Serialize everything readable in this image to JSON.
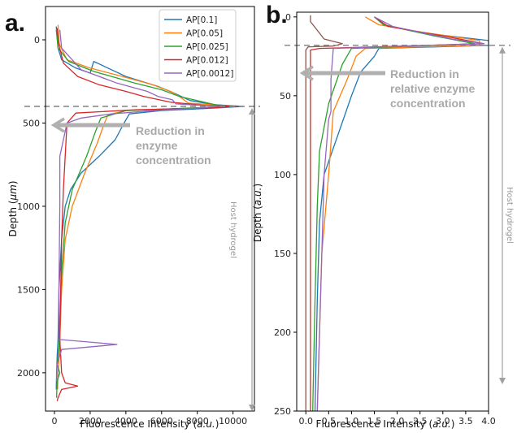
{
  "chart_data": [
    {
      "panel": "a.",
      "type": "line",
      "orientation": "depth-vertical",
      "xlabel": "Fluorescence Intensity (a.u.)",
      "ylabel": "Depth (μm)",
      "xlim": [
        -500,
        11200
      ],
      "ylim": [
        2230,
        -200
      ],
      "y_inverted": true,
      "xticks": [
        0,
        2000,
        4000,
        6000,
        8000,
        10000
      ],
      "yticks": [
        0,
        500,
        1000,
        1500,
        2000
      ],
      "legend": "top-right",
      "annotation": "Reduction in enzyme concentration",
      "region_label": "Host hydrogel",
      "dashed_line_depth": 400,
      "series": [
        {
          "name": "AP[0.1]",
          "color": "#1f77b4",
          "points": [
            [
              100,
              -80
            ],
            [
              200,
              50
            ],
            [
              400,
              120
            ],
            [
              1200,
              170
            ],
            [
              2000,
              200
            ],
            [
              2200,
              130
            ],
            [
              2600,
              150
            ],
            [
              4000,
              220
            ],
            [
              5800,
              280
            ],
            [
              6700,
              320
            ],
            [
              7600,
              365
            ],
            [
              9000,
              390
            ],
            [
              10600,
              400
            ],
            [
              9000,
              410
            ],
            [
              6000,
              425
            ],
            [
              4200,
              445
            ],
            [
              3900,
              500
            ],
            [
              3400,
              600
            ],
            [
              2500,
              700
            ],
            [
              1500,
              800
            ],
            [
              900,
              900
            ],
            [
              600,
              1000
            ],
            [
              400,
              1200
            ],
            [
              250,
              1500
            ],
            [
              200,
              1800
            ],
            [
              150,
              1900
            ],
            [
              120,
              2000
            ],
            [
              100,
              2100
            ]
          ]
        },
        {
          "name": "AP[0.05]",
          "color": "#ff7f0e",
          "points": [
            [
              200,
              -90
            ],
            [
              250,
              20
            ],
            [
              700,
              120
            ],
            [
              2000,
              170
            ],
            [
              3800,
              220
            ],
            [
              5500,
              270
            ],
            [
              6500,
              310
            ],
            [
              7000,
              340
            ],
            [
              7500,
              380
            ],
            [
              10200,
              400
            ],
            [
              8000,
              410
            ],
            [
              4000,
              425
            ],
            [
              3000,
              450
            ],
            [
              2800,
              500
            ],
            [
              2400,
              620
            ],
            [
              1700,
              800
            ],
            [
              1000,
              1000
            ],
            [
              600,
              1200
            ],
            [
              400,
              1500
            ],
            [
              300,
              1800
            ],
            [
              280,
              1880
            ],
            [
              200,
              2000
            ],
            [
              180,
              2100
            ]
          ]
        },
        {
          "name": "AP[0.025]",
          "color": "#2ca02c",
          "points": [
            [
              100,
              -60
            ],
            [
              200,
              50
            ],
            [
              800,
              130
            ],
            [
              2200,
              190
            ],
            [
              4500,
              260
            ],
            [
              6000,
              300
            ],
            [
              7000,
              340
            ],
            [
              9000,
              390
            ],
            [
              10000,
              400
            ],
            [
              7500,
              410
            ],
            [
              4000,
              425
            ],
            [
              2600,
              470
            ],
            [
              2300,
              550
            ],
            [
              1800,
              700
            ],
            [
              1000,
              900
            ],
            [
              600,
              1100
            ],
            [
              400,
              1400
            ],
            [
              300,
              1700
            ],
            [
              250,
              1850
            ],
            [
              150,
              1950
            ],
            [
              300,
              2000
            ],
            [
              150,
              2050
            ],
            [
              120,
              2150
            ]
          ]
        },
        {
          "name": "AP[0.012]",
          "color": "#d62728",
          "points": [
            [
              150,
              -70
            ],
            [
              250,
              30
            ],
            [
              500,
              140
            ],
            [
              1300,
              220
            ],
            [
              2500,
              270
            ],
            [
              4000,
              310
            ],
            [
              5000,
              340
            ],
            [
              6500,
              375
            ],
            [
              8500,
              395
            ],
            [
              10200,
              400
            ],
            [
              8500,
              410
            ],
            [
              4500,
              420
            ],
            [
              1200,
              440
            ],
            [
              700,
              500
            ],
            [
              600,
              700
            ],
            [
              500,
              900
            ],
            [
              400,
              1200
            ],
            [
              350,
              1500
            ],
            [
              300,
              1800
            ],
            [
              400,
              2000
            ],
            [
              600,
              2060
            ],
            [
              1300,
              2080
            ],
            [
              400,
              2100
            ],
            [
              200,
              2150
            ],
            [
              150,
              2170
            ]
          ]
        },
        {
          "name": "AP[0.0012]",
          "color": "#9467bd",
          "points": [
            [
              300,
              -60
            ],
            [
              400,
              50
            ],
            [
              1500,
              180
            ],
            [
              3500,
              260
            ],
            [
              5200,
              310
            ],
            [
              5800,
              340
            ],
            [
              6600,
              360
            ],
            [
              6800,
              385
            ],
            [
              9200,
              400
            ],
            [
              8000,
              410
            ],
            [
              5500,
              425
            ],
            [
              3200,
              445
            ],
            [
              1500,
              470
            ],
            [
              700,
              500
            ],
            [
              500,
              600
            ],
            [
              300,
              700
            ],
            [
              300,
              1000
            ],
            [
              250,
              1500
            ],
            [
              250,
              1800
            ],
            [
              3500,
              1830
            ],
            [
              400,
              1860
            ],
            [
              150,
              1950
            ],
            [
              120,
              2050
            ]
          ]
        }
      ]
    },
    {
      "panel": "b.",
      "type": "line",
      "orientation": "depth-vertical",
      "xlabel": "Fluorescence Intensity (a.u.)",
      "ylabel": "Depth (a.u.)",
      "xlim": [
        -0.2,
        4.0
      ],
      "ylim": [
        250,
        -3
      ],
      "y_inverted": true,
      "xticks": [
        0.0,
        0.5,
        1.0,
        1.5,
        2.0,
        2.5,
        3.0,
        3.5,
        4.0
      ],
      "yticks": [
        0,
        50,
        100,
        150,
        200,
        250
      ],
      "annotation": "Reduction in relative enzyme concentration",
      "region_label": "Host hydrogel",
      "dashed_line_depth": 18,
      "series": [
        {
          "name": "AP[0.1]",
          "color": "#1f77b4",
          "points": [
            [
              1.5,
              0
            ],
            [
              1.7,
              5
            ],
            [
              2.5,
              10
            ],
            [
              4.0,
              15
            ],
            [
              4.0,
              18
            ],
            [
              1.6,
              20
            ],
            [
              1.5,
              25
            ],
            [
              1.2,
              35
            ],
            [
              1.0,
              50
            ],
            [
              0.7,
              75
            ],
            [
              0.4,
              100
            ],
            [
              0.3,
              130
            ],
            [
              0.25,
              180
            ],
            [
              0.2,
              250
            ]
          ]
        },
        {
          "name": "AP[0.05]",
          "color": "#ff7f0e",
          "points": [
            [
              1.3,
              0
            ],
            [
              1.6,
              5
            ],
            [
              2.6,
              10
            ],
            [
              3.8,
              15
            ],
            [
              3.8,
              18
            ],
            [
              1.3,
              20
            ],
            [
              1.1,
              25
            ],
            [
              0.9,
              40
            ],
            [
              0.6,
              60
            ],
            [
              0.5,
              100
            ],
            [
              0.35,
              150
            ],
            [
              0.25,
              250
            ]
          ]
        },
        {
          "name": "AP[0.025]",
          "color": "#2ca02c",
          "points": [
            [
              1.5,
              0
            ],
            [
              1.7,
              5
            ],
            [
              2.8,
              12
            ],
            [
              3.7,
              17
            ],
            [
              1.0,
              20
            ],
            [
              0.8,
              30
            ],
            [
              0.5,
              55
            ],
            [
              0.3,
              85
            ],
            [
              0.25,
              120
            ],
            [
              0.2,
              180
            ],
            [
              0.15,
              250
            ]
          ]
        },
        {
          "name": "AP[0.012]",
          "color": "#d62728",
          "points": [
            [
              1.5,
              0
            ],
            [
              1.8,
              6
            ],
            [
              3.0,
              12
            ],
            [
              3.9,
              17
            ],
            [
              0.3,
              20
            ],
            [
              0.1,
              21
            ],
            [
              0.1,
              250
            ]
          ]
        },
        {
          "name": "AP[0.0012]",
          "color": "#9467bd",
          "points": [
            [
              1.5,
              0
            ],
            [
              1.9,
              6
            ],
            [
              3.2,
              14
            ],
            [
              3.9,
              17
            ],
            [
              0.6,
              20
            ],
            [
              0.55,
              40
            ],
            [
              0.55,
              60
            ],
            [
              0.5,
              65
            ],
            [
              0.4,
              100
            ],
            [
              0.35,
              150
            ],
            [
              0.25,
              250
            ]
          ]
        },
        {
          "name": "",
          "color": "#8c564b",
          "points": [
            [
              0.1,
              -1
            ],
            [
              0.1,
              3
            ],
            [
              0.4,
              14
            ],
            [
              0.8,
              17
            ],
            [
              0.6,
              18.5
            ],
            [
              0.05,
              19
            ],
            [
              0.0,
              21
            ],
            [
              0.0,
              250
            ]
          ]
        }
      ]
    }
  ]
}
